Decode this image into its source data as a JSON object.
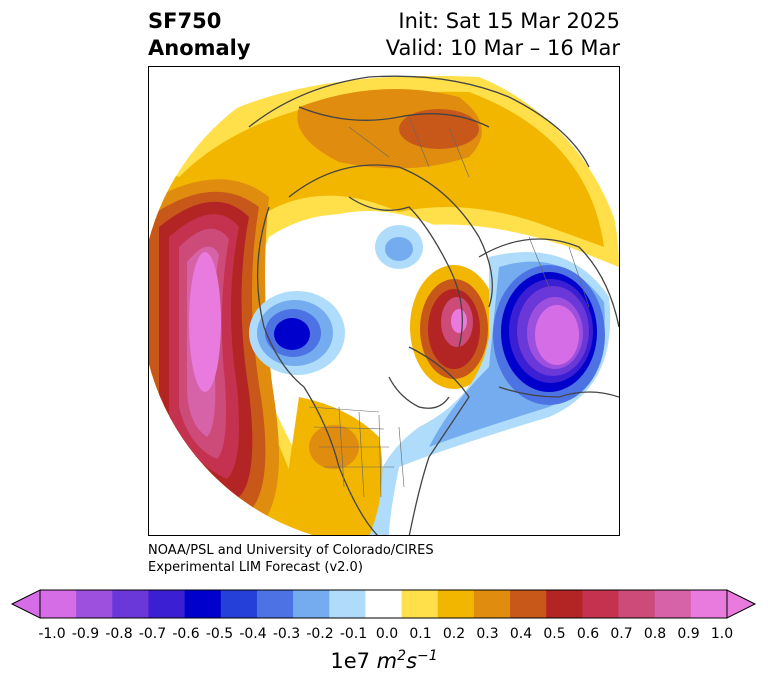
{
  "title": {
    "left_line1": "SF750",
    "left_line2": "Anomaly",
    "right_line1": "Init: Sat 15 Mar 2025",
    "right_line2": "Valid: 10 Mar – 16 Mar"
  },
  "credit": {
    "line1": "NOAA/PSL and University of Colorado/CIRES",
    "line2": "Experimental LIM Forecast (v2.0)"
  },
  "colorbar": {
    "ticks": [
      "-1.0",
      "-0.9",
      "-0.8",
      "-0.7",
      "-0.6",
      "-0.5",
      "-0.4",
      "-0.3",
      "-0.2",
      "-0.1",
      "0.0",
      "0.1",
      "0.2",
      "0.3",
      "0.4",
      "0.5",
      "0.6",
      "0.7",
      "0.8",
      "0.9",
      "1.0"
    ],
    "colors": [
      "#d56ee6",
      "#9d4fdd",
      "#6a37d8",
      "#3b1fd2",
      "#0000cc",
      "#2540d8",
      "#4d72e4",
      "#75acef",
      "#aedcfa",
      "#ffffff",
      "#ffe04a",
      "#f2b600",
      "#e08d0f",
      "#c8581a",
      "#b32424",
      "#c4324f",
      "#cc4b78",
      "#d662a8",
      "#e87bdd"
    ],
    "under_color": "#d56ee6",
    "over_color": "#e87bdd",
    "units_prefix": "1e7 ",
    "units_main": "m",
    "units_sup1": "2",
    "units_mid": "s",
    "units_sup2": "−1"
  }
}
